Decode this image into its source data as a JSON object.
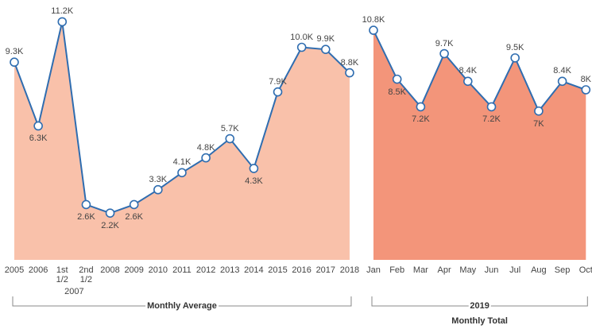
{
  "chart_data": [
    {
      "type": "area",
      "categories": [
        "2005",
        "2006",
        "1st 1/2",
        "2nd 1/2",
        "2008",
        "2009",
        "2010",
        "2011",
        "2012",
        "2013",
        "2014",
        "2015",
        "2016",
        "2017",
        "2018"
      ],
      "category_group": "2007",
      "values": [
        9300,
        6300,
        11200,
        2600,
        2200,
        2600,
        3300,
        4100,
        4800,
        5700,
        4300,
        7900,
        10000,
        9900,
        8800
      ],
      "value_labels": [
        "9.3K",
        "6.3K",
        "11.2K",
        "2.6K",
        "2.2K",
        "2.6K",
        "3.3K",
        "4.1K",
        "4.8K",
        "5.7K",
        "4.3K",
        "7.9K",
        "10.0K",
        "9.9K",
        "8.8K"
      ],
      "ylim": [
        0,
        12000
      ],
      "color": "#f9c1aa",
      "line_color": "#2f6db0",
      "xlabel": "Monthly Average"
    },
    {
      "type": "area",
      "categories": [
        "Jan",
        "Feb",
        "Mar",
        "Apr",
        "May",
        "Jun",
        "Jul",
        "Aug",
        "Sep",
        "Oct"
      ],
      "values": [
        10800,
        8500,
        7200,
        9700,
        8400,
        7200,
        9500,
        7000,
        8400,
        8000
      ],
      "value_labels": [
        "10.8K",
        "8.5K",
        "7.2K",
        "9.7K",
        "8.4K",
        "7.2K",
        "9.5K",
        "7K",
        "8.4K",
        "8K"
      ],
      "ylim": [
        0,
        12000
      ],
      "color": "#f3957a",
      "line_color": "#2f6db0",
      "xlabel_group": "2019",
      "xlabel": "Monthly Total"
    }
  ]
}
